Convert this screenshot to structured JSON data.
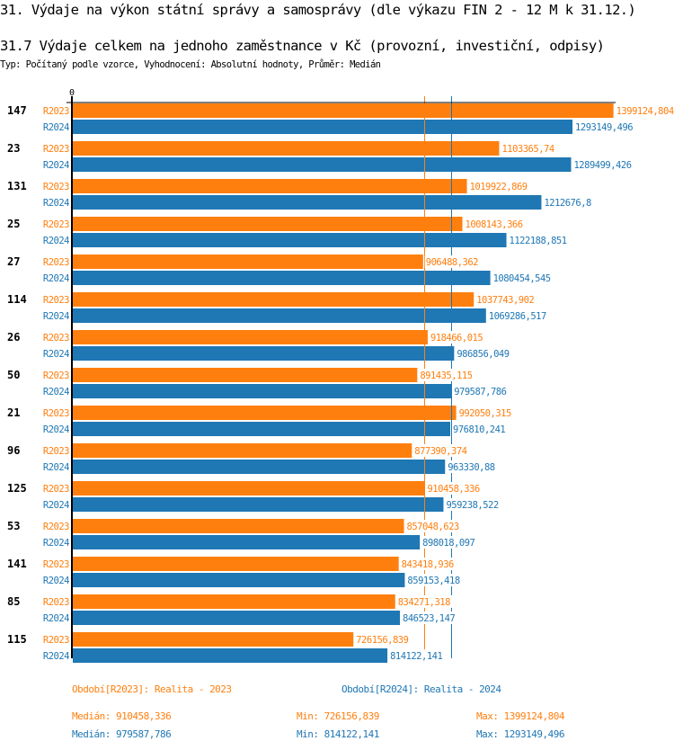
{
  "header": {
    "title": "31. Výdaje na výkon státní správy a samosprávy (dle výkazu FIN 2 - 12 M k 31.12.)",
    "subtitle": "31.7 Výdaje celkem na jednoho zaměstnance v Kč (provozní, investiční, odpisy)",
    "description": "Typ: Počítaný podle vzorce, Vyhodnocení: Absolutní hodnoty, Průměr: Medián"
  },
  "colors": {
    "R2023": "#ff7f0e",
    "R2024": "#1f77b4",
    "axis": "#000000"
  },
  "chart_data": {
    "type": "bar",
    "orientation": "horizontal",
    "title": "31.7 Výdaje celkem na jednoho zaměstnance v Kč (provozní, investiční, odpisy)",
    "xlabel": "",
    "ylabel": "",
    "x_tick_labels": [
      "0"
    ],
    "xlim": [
      0,
      1400000
    ],
    "grid": false,
    "categories": [
      "147",
      "23",
      "131",
      "25",
      "27",
      "114",
      "26",
      "50",
      "21",
      "96",
      "125",
      "53",
      "141",
      "85",
      "115"
    ],
    "series": [
      {
        "name": "R2023",
        "values": [
          1399124.804,
          1103365.74,
          1019922.869,
          1008143.366,
          906488.362,
          1037743.902,
          918466.015,
          891435.115,
          992050.315,
          877390.374,
          910458.336,
          857048.623,
          843418.936,
          834271.318,
          726156.839
        ],
        "labels": [
          "1399124,804",
          "1103365,74",
          "1019922,869",
          "1008143,366",
          "906488,362",
          "1037743,902",
          "918466,015",
          "891435,115",
          "992050,315",
          "877390,374",
          "910458,336",
          "857048,623",
          "843418,936",
          "834271,318",
          "726156,839"
        ],
        "median": 910458.336
      },
      {
        "name": "R2024",
        "values": [
          1293149.496,
          1289499.426,
          1212676.8,
          1122188.851,
          1080454.545,
          1069286.517,
          986856.049,
          979587.786,
          976810.241,
          963330.88,
          959238.522,
          898018.097,
          859153.418,
          846523.147,
          814122.141
        ],
        "labels": [
          "1293149,496",
          "1289499,426",
          "1212676,8",
          "1122188,851",
          "1080454,545",
          "1069286,517",
          "986856,049",
          "979587,786",
          "976810,241",
          "963330,88",
          "959238,522",
          "898018,097",
          "859153,418",
          "846523,147",
          "814122,141"
        ],
        "median": 979587.786
      }
    ],
    "legend": "bottom"
  },
  "footer": {
    "legend_2023": "Období[R2023]: Realita - 2023",
    "legend_2024": "Období[R2024]: Realita - 2024",
    "stats_2023": {
      "median": "Medián: 910458,336",
      "min": "Min: 726156,839",
      "max": "Max: 1399124,804"
    },
    "stats_2024": {
      "median": "Medián: 979587,786",
      "min": "Min: 814122,141",
      "max": "Max: 1293149,496"
    }
  }
}
